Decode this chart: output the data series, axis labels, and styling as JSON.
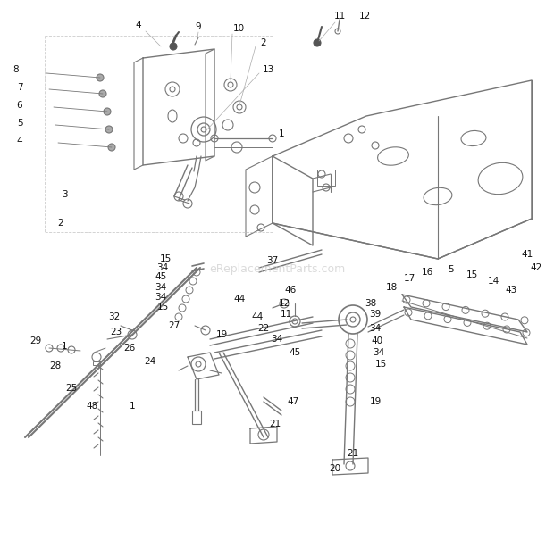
{
  "bg_color": "#ffffff",
  "line_color": "#aaaaaa",
  "dark_color": "#555555",
  "med_color": "#777777",
  "watermark": "eReplacementParts.com",
  "watermark_color": "#cccccc",
  "fig_width": 6.2,
  "fig_height": 6.05,
  "dpi": 100
}
